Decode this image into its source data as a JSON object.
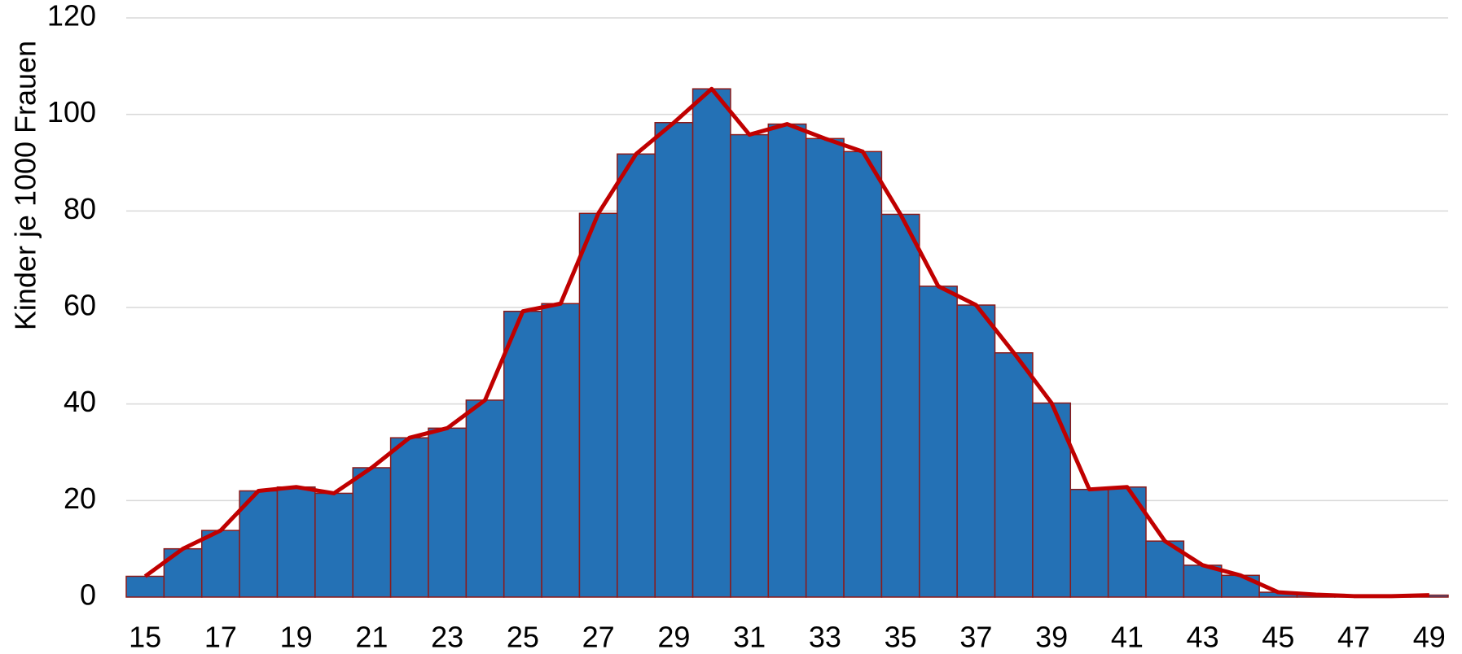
{
  "chart_data": {
    "type": "bar",
    "y_label": "Kinder je 1000 Frauen",
    "categories": [
      15,
      null,
      17,
      null,
      19,
      null,
      21,
      null,
      23,
      null,
      25,
      null,
      27,
      null,
      29,
      null,
      31,
      null,
      33,
      null,
      35,
      null,
      37,
      null,
      39,
      null,
      41,
      null,
      43,
      null,
      45,
      null,
      47,
      null,
      49
    ],
    "series": [
      {
        "type": "bar",
        "color": "#2471b5",
        "edge_color": "#8b1a1a",
        "values": [
          4.3,
          10,
          13.8,
          22,
          22.8,
          21.5,
          26.8,
          33,
          35,
          40.8,
          59.2,
          60.8,
          79.5,
          91.8,
          98.3,
          105.3,
          95.8,
          98,
          95,
          92.3,
          79.3,
          64.4,
          60.5,
          50.6,
          40.2,
          22.3,
          22.8,
          11.6,
          6.6,
          4.5,
          1,
          0.5,
          0.2,
          0.2,
          0.4
        ]
      },
      {
        "type": "line",
        "color": "#c00000",
        "values": [
          4.3,
          10,
          13.8,
          22,
          22.8,
          21.5,
          26.8,
          33,
          35,
          40.8,
          59.2,
          60.8,
          79.5,
          91.8,
          98.3,
          105.3,
          95.8,
          98,
          95,
          92.3,
          79.3,
          64.4,
          60.5,
          50.6,
          40.2,
          22.3,
          22.8,
          11.6,
          6.6,
          4.5,
          1,
          0.5,
          0.2,
          0.2,
          0.4
        ]
      }
    ],
    "ylim": [
      0,
      120
    ],
    "yticks": [
      0,
      20,
      40,
      60,
      80,
      100,
      120
    ],
    "grid": true
  }
}
